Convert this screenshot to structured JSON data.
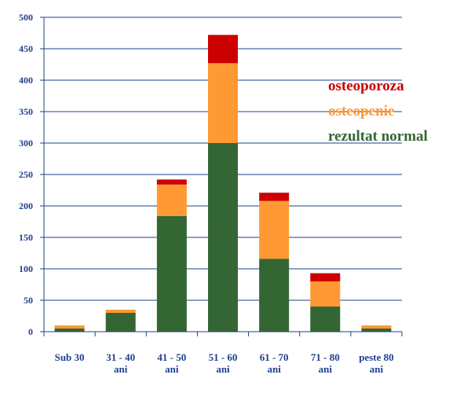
{
  "chart_data": {
    "type": "bar",
    "stacked": true,
    "categories": [
      [
        "Sub 30"
      ],
      [
        "31 - 40",
        "ani"
      ],
      [
        "41 - 50",
        "ani"
      ],
      [
        "51 - 60",
        "ani"
      ],
      [
        "61 - 70",
        "ani"
      ],
      [
        "71 - 80",
        "ani"
      ],
      [
        "peste 80",
        "ani"
      ]
    ],
    "series": [
      {
        "name": "rezultat normal",
        "color": "#336633",
        "values": [
          5,
          30,
          184,
          300,
          116,
          40,
          5
        ]
      },
      {
        "name": "osteopenie",
        "color": "#ff9933",
        "values": [
          5,
          5,
          50,
          127,
          92,
          40,
          5
        ]
      },
      {
        "name": "osteoporoza",
        "color": "#cc0000",
        "values": [
          0,
          0,
          8,
          45,
          13,
          13,
          0
        ]
      }
    ],
    "legend_order": [
      "osteoporoza",
      "osteopenie",
      "rezultat normal"
    ],
    "legend_position": "right",
    "ylim": [
      0,
      500
    ],
    "yticks": [
      0,
      50,
      100,
      150,
      200,
      250,
      300,
      350,
      400,
      450,
      500
    ],
    "grid": true,
    "gridline_color": "#1f3f8f",
    "axis_text_color": "#1f3f8f"
  }
}
